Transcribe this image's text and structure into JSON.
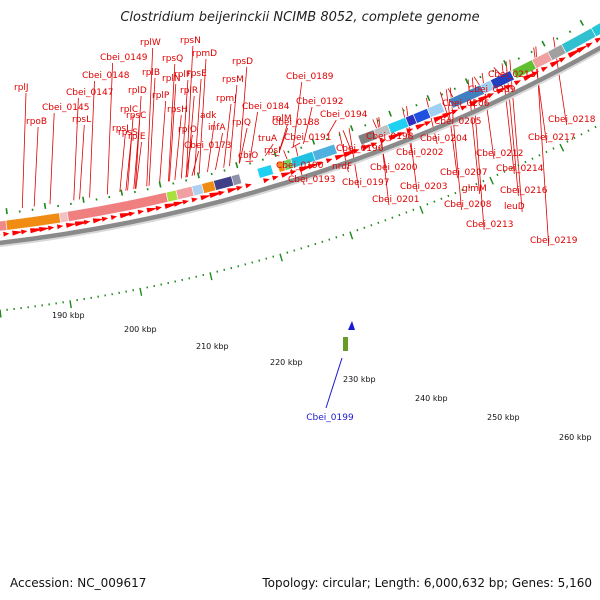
{
  "title": "Clostridium beijerinckii NCIMB 8052, complete genome",
  "footer": {
    "accession": "Accession: NC_009617",
    "info": "Topology: circular; Length: 6,000,632 bp; Genes: 5,160"
  },
  "colors": {
    "label": "#e00000",
    "selected": "#1a1ad0",
    "forward_arrow": "#ff0000",
    "tick": "#1b8a1b"
  },
  "scale": {
    "unit": "kbp",
    "labels": [
      "190 kbp",
      "200 kbp",
      "210 kbp",
      "220 kbp",
      "230 kbp",
      "240 kbp",
      "250 kbp",
      "260 kbp"
    ]
  },
  "selected_gene": "Cbei_0199",
  "gene_labels": [
    "rplJ",
    "rpoB",
    "Cbei_0145",
    "rpsL",
    "Cbei_0147",
    "Cbei_0148",
    "Cbei_0149",
    "rplW",
    "rpsQ",
    "rpsN",
    "rplB",
    "rplD",
    "rplC",
    "rpsJ",
    "rpsS",
    "rpsC",
    "rplE",
    "rplP",
    "rplN",
    "rplF",
    "rpmD",
    "rpsE",
    "rplR",
    "rpsH",
    "rplO",
    "adk",
    "infA",
    "Cbei_0173",
    "rpsD",
    "rpsM",
    "rpmJ",
    "rplQ",
    "cbiO",
    "truA",
    "rpsI",
    "rplM",
    "Cbei_0184",
    "Cbei_0188",
    "Cbei_0189",
    "Cbei_0190",
    "Cbei_0191",
    "Cbei_0192",
    "Cbei_0193",
    "Cbei_0194",
    "nrdF",
    "Cbei_0196",
    "Cbei_0197",
    "Cbei_0198",
    "Cbei_0200",
    "Cbei_0201",
    "Cbei_0202",
    "Cbei_0203",
    "Cbei_0204",
    "Cbei_0205",
    "Cbei_0206",
    "Cbei_0207",
    "Cbei_0208",
    "glmM",
    "Cbei_0209",
    "Cbei_0211",
    "Cbei_0212",
    "Cbei_0213",
    "leuD",
    "Cbei_0214",
    "Cbei_0216",
    "Cbei_0217",
    "Cbei_0218",
    "Cbei_0219"
  ]
}
